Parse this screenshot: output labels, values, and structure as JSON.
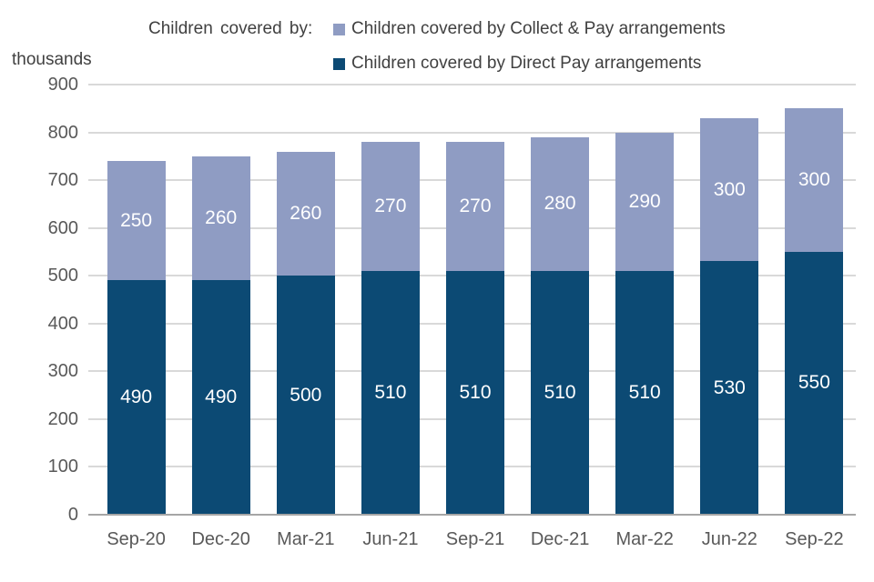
{
  "legend": {
    "prefix": "Children covered by:",
    "items": [
      {
        "label": "Children covered by Collect & Pay arrangements",
        "color": "#8F9CC3"
      },
      {
        "label": "Children covered by Direct Pay arrangements",
        "color": "#0C4A74"
      }
    ]
  },
  "chart_data": {
    "type": "bar",
    "stacked": true,
    "unit_label": "thousands",
    "categories": [
      "Sep-20",
      "Dec-20",
      "Mar-21",
      "Jun-21",
      "Sep-21",
      "Dec-21",
      "Mar-22",
      "Jun-22",
      "Sep-22"
    ],
    "series": [
      {
        "name": "Children covered by Direct Pay arrangements",
        "color": "#0C4A74",
        "values": [
          490,
          490,
          500,
          510,
          510,
          510,
          510,
          530,
          550
        ]
      },
      {
        "name": "Children covered by Collect & Pay arrangements",
        "color": "#8F9CC3",
        "values": [
          250,
          260,
          260,
          270,
          270,
          280,
          290,
          300,
          300
        ]
      }
    ],
    "totals": [
      740,
      750,
      760,
      780,
      780,
      790,
      800,
      830,
      850
    ],
    "ylim": [
      0,
      900
    ],
    "yticks": [
      0,
      100,
      200,
      300,
      400,
      500,
      600,
      700,
      800,
      900
    ],
    "grid": "horizontal",
    "legend_position": "top"
  },
  "colors": {
    "grid": "#D9D9D9",
    "axis_line": "#A6A6A6",
    "tick_text": "#595959",
    "legend_text": "#404040",
    "bar_label": "#FFFFFF"
  }
}
